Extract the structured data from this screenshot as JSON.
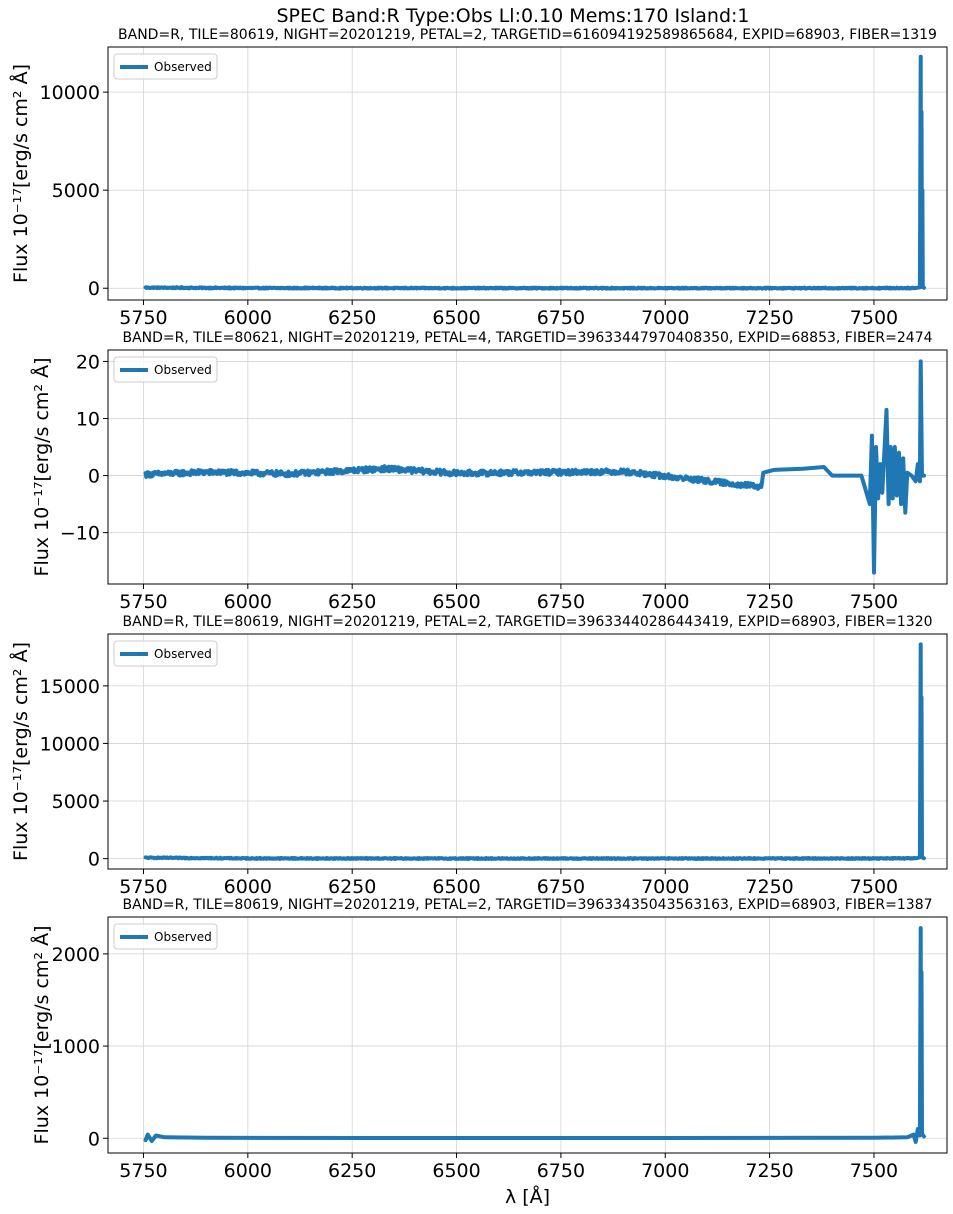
{
  "suptitle": "SPEC Band:R Type:Obs Ll:0.10 Mems:170 Island:1",
  "colors": {
    "series": "#1f77b4",
    "grid": "#d3d3d3"
  },
  "chart_data": [
    {
      "type": "line",
      "title": "BAND=R, TILE=80619, NIGHT=20201219, PETAL=2, TARGETID=616094192589865684, EXPID=68903, FIBER=1319",
      "ylabel": "Flux 10⁻¹⁷[erg/s cm² Å]",
      "xlabel": "",
      "xlim": [
        5665,
        7675
      ],
      "ylim": [
        -600,
        12300
      ],
      "xticks": [
        5750,
        6000,
        6250,
        6500,
        6750,
        7000,
        7250,
        7500
      ],
      "yticks": [
        0,
        5000,
        10000
      ],
      "grid": true,
      "legend": {
        "placement": "top-left",
        "entries": [
          "Observed"
        ]
      },
      "series": [
        {
          "name": "Observed",
          "noise": 25,
          "x": [
            5755,
            6000,
            6500,
            7000,
            7500,
            7600,
            7610,
            7612,
            7613,
            7614,
            7615,
            7616,
            7617,
            7620
          ],
          "y": [
            30,
            10,
            5,
            5,
            5,
            10,
            50,
            11800,
            300,
            9000,
            100,
            5000,
            60,
            20
          ]
        }
      ]
    },
    {
      "type": "line",
      "title": "BAND=R, TILE=80621, NIGHT=20201219, PETAL=4, TARGETID=39633447970408350, EXPID=68853, FIBER=2474",
      "ylabel": "Flux 10⁻¹⁷[erg/s cm² Å]",
      "xlabel": "",
      "xlim": [
        5665,
        7675
      ],
      "ylim": [
        -19,
        22
      ],
      "xticks": [
        5750,
        6000,
        6250,
        6500,
        6750,
        7000,
        7250,
        7500
      ],
      "yticks": [
        -10,
        0,
        10,
        20
      ],
      "grid": true,
      "legend": {
        "placement": "top-left",
        "entries": [
          "Observed"
        ]
      },
      "series": [
        {
          "name": "Observed",
          "noise": 0.45,
          "x": [
            5755,
            5900,
            6100,
            6330,
            6500,
            6900,
            7230,
            7235,
            7260,
            7330,
            7380,
            7400,
            7470,
            7490,
            7495,
            7500,
            7505,
            7510,
            7515,
            7520,
            7530,
            7535,
            7540,
            7545,
            7550,
            7555,
            7560,
            7565,
            7570,
            7575,
            7580,
            7590,
            7600,
            7605,
            7610,
            7612,
            7615,
            7620
          ],
          "y": [
            0.2,
            0.6,
            0.3,
            1.2,
            0.4,
            0.7,
            -2,
            0.5,
            1,
            1.2,
            1.5,
            0,
            0,
            -5,
            7,
            -17,
            5,
            -4,
            2,
            -3,
            11.5,
            -5,
            5,
            -4,
            5,
            -3.5,
            4,
            -5,
            3,
            -6.5,
            0.5,
            0,
            -1,
            2,
            -1,
            20,
            0,
            0
          ]
        }
      ]
    },
    {
      "type": "line",
      "title": "BAND=R, TILE=80619, NIGHT=20201219, PETAL=2, TARGETID=39633440286443419, EXPID=68903, FIBER=1320",
      "ylabel": "Flux 10⁻¹⁷[erg/s cm² Å]",
      "xlabel": "",
      "xlim": [
        5665,
        7675
      ],
      "ylim": [
        -900,
        19500
      ],
      "xticks": [
        5750,
        6000,
        6250,
        6500,
        6750,
        7000,
        7250,
        7500
      ],
      "yticks": [
        0,
        5000,
        10000,
        15000
      ],
      "grid": true,
      "legend": {
        "placement": "top-left",
        "entries": [
          "Observed"
        ]
      },
      "series": [
        {
          "name": "Observed",
          "noise": 40,
          "x": [
            5755,
            6000,
            6500,
            7000,
            7500,
            7600,
            7610,
            7612,
            7613,
            7614,
            7615,
            7616,
            7620
          ],
          "y": [
            80,
            20,
            10,
            10,
            15,
            30,
            120,
            18600,
            500,
            14000,
            200,
            90,
            40
          ]
        }
      ]
    },
    {
      "type": "line",
      "title": "BAND=R, TILE=80619, NIGHT=20201219, PETAL=2, TARGETID=39633435043563163, EXPID=68903, FIBER=1387",
      "ylabel": "Flux 10⁻¹⁷[erg/s cm² Å]",
      "xlabel": "λ [Å]",
      "xlim": [
        5665,
        7675
      ],
      "ylim": [
        -160,
        2400
      ],
      "xticks": [
        5750,
        6000,
        6250,
        6500,
        6750,
        7000,
        7250,
        7500
      ],
      "yticks": [
        0,
        1000,
        2000
      ],
      "grid": true,
      "legend": {
        "placement": "top-left",
        "entries": [
          "Observed"
        ]
      },
      "series": [
        {
          "name": "Observed",
          "noise": 8,
          "x": [
            5755,
            5760,
            5770,
            5780,
            5800,
            5900,
            6500,
            7000,
            7500,
            7580,
            7595,
            7600,
            7605,
            7610,
            7612,
            7613,
            7614,
            7615,
            7618,
            7620
          ],
          "y": [
            -20,
            40,
            -30,
            30,
            10,
            5,
            3,
            3,
            5,
            10,
            40,
            -40,
            100,
            30,
            2280,
            60,
            1800,
            40,
            30,
            20
          ]
        }
      ]
    }
  ]
}
